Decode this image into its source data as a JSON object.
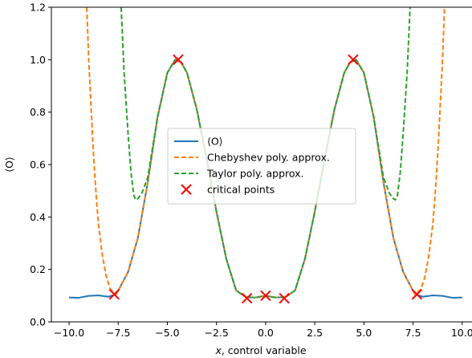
{
  "chart_data": {
    "type": "line",
    "xlabel_italic": "x",
    "xlabel_rest": ", control variable",
    "ylabel": "⟨O⟩",
    "xlim": [
      -10.9,
      10.5
    ],
    "ylim": [
      0.0,
      1.2
    ],
    "xticks": [
      -10.0,
      -7.5,
      -5.0,
      -2.5,
      0.0,
      2.5,
      5.0,
      7.5,
      10.0
    ],
    "xtick_labels": [
      "−10.0",
      "−7.5",
      "−5.0",
      "−2.5",
      "0.0",
      "2.5",
      "5.0",
      "7.5",
      "10.0"
    ],
    "yticks": [
      0.0,
      0.2,
      0.4,
      0.6,
      0.8,
      1.0,
      1.2
    ],
    "ytick_labels": [
      "0.0",
      "0.2",
      "0.4",
      "0.6",
      "0.8",
      "1.0",
      "1.2"
    ],
    "grid": false,
    "legend_position": "center",
    "series": [
      {
        "name": "⟨O⟩",
        "style": "solid",
        "color": "#1f77b4",
        "x": [
          -10.0,
          -9.5,
          -9.0,
          -8.5,
          -8.0,
          -7.6,
          -7.0,
          -6.5,
          -6.0,
          -5.5,
          -5.0,
          -4.6,
          -4.3,
          -4.0,
          -3.5,
          -3.0,
          -2.5,
          -2.0,
          -1.5,
          -1.0,
          -0.5,
          0.0,
          0.5,
          1.0,
          1.5,
          2.0,
          2.5,
          3.0,
          3.5,
          4.0,
          4.3,
          4.6,
          5.0,
          5.5,
          6.0,
          6.5,
          7.0,
          7.6,
          8.0,
          8.5,
          9.0,
          9.5,
          10.0
        ],
        "y": [
          0.093,
          0.092,
          0.099,
          0.101,
          0.096,
          0.105,
          0.19,
          0.32,
          0.53,
          0.78,
          0.95,
          1.0,
          0.99,
          0.95,
          0.81,
          0.62,
          0.42,
          0.24,
          0.12,
          0.094,
          0.093,
          0.1,
          0.093,
          0.094,
          0.12,
          0.24,
          0.42,
          0.62,
          0.81,
          0.95,
          0.99,
          1.0,
          0.95,
          0.78,
          0.53,
          0.32,
          0.19,
          0.105,
          0.096,
          0.101,
          0.099,
          0.092,
          0.093
        ]
      },
      {
        "name": "Chebyshev poly. approx.",
        "style": "dashed",
        "color": "#ff7f0e",
        "x": [
          -9.1,
          -9.0,
          -8.9,
          -8.8,
          -8.7,
          -8.6,
          -8.5,
          -8.3,
          -8.1,
          -7.9,
          -7.6,
          -7.0,
          -6.5,
          -6.0,
          -5.5,
          -5.0,
          -4.6,
          -4.3,
          -4.0,
          -3.5,
          -3.0,
          -2.5,
          -2.0,
          -1.5,
          -1.0,
          -0.5,
          0.0,
          0.5,
          1.0,
          1.5,
          2.0,
          2.5,
          3.0,
          3.5,
          4.0,
          4.3,
          4.6,
          5.0,
          5.5,
          6.0,
          6.5,
          7.0,
          7.6,
          7.9,
          8.1,
          8.3,
          8.5,
          8.6,
          8.7,
          8.8,
          8.9,
          9.0,
          9.1
        ],
        "y": [
          1.2,
          1.0,
          0.85,
          0.7,
          0.57,
          0.46,
          0.37,
          0.25,
          0.17,
          0.125,
          0.105,
          0.19,
          0.32,
          0.53,
          0.78,
          0.95,
          1.0,
          0.99,
          0.95,
          0.81,
          0.62,
          0.42,
          0.24,
          0.12,
          0.094,
          0.093,
          0.1,
          0.093,
          0.094,
          0.12,
          0.24,
          0.42,
          0.62,
          0.81,
          0.95,
          0.99,
          1.0,
          0.95,
          0.78,
          0.53,
          0.32,
          0.19,
          0.105,
          0.125,
          0.17,
          0.25,
          0.37,
          0.46,
          0.57,
          0.7,
          0.85,
          1.0,
          1.2
        ]
      },
      {
        "name": "Taylor poly. approx.",
        "style": "dashed",
        "color": "#2ca02c",
        "x": [
          -7.35,
          -7.2,
          -7.0,
          -6.85,
          -6.7,
          -6.6,
          -6.5,
          -6.3,
          -6.0,
          -5.5,
          -5.0,
          -4.6,
          -4.3,
          -4.0,
          -3.5,
          -3.0,
          -2.5,
          -2.0,
          -1.5,
          -1.0,
          -0.5,
          0.0,
          0.5,
          1.0,
          1.5,
          2.0,
          2.5,
          3.0,
          3.5,
          4.0,
          4.3,
          4.6,
          5.0,
          5.5,
          6.0,
          6.3,
          6.5,
          6.6,
          6.7,
          6.85,
          7.0,
          7.2,
          7.35
        ],
        "y": [
          1.2,
          0.95,
          0.72,
          0.57,
          0.48,
          0.465,
          0.47,
          0.49,
          0.55,
          0.78,
          0.95,
          1.0,
          0.99,
          0.95,
          0.81,
          0.62,
          0.42,
          0.24,
          0.12,
          0.094,
          0.093,
          0.1,
          0.093,
          0.094,
          0.12,
          0.24,
          0.42,
          0.62,
          0.81,
          0.95,
          0.99,
          1.0,
          0.95,
          0.78,
          0.55,
          0.49,
          0.47,
          0.465,
          0.48,
          0.57,
          0.72,
          0.95,
          1.2
        ]
      },
      {
        "name": "critical points",
        "style": "marker-x",
        "color": "#ff0000",
        "x": [
          -7.7,
          -4.45,
          -0.95,
          0.0,
          0.95,
          4.45,
          7.7
        ],
        "y": [
          0.105,
          1.0,
          0.09,
          0.1,
          0.09,
          1.0,
          0.105
        ]
      }
    ]
  }
}
